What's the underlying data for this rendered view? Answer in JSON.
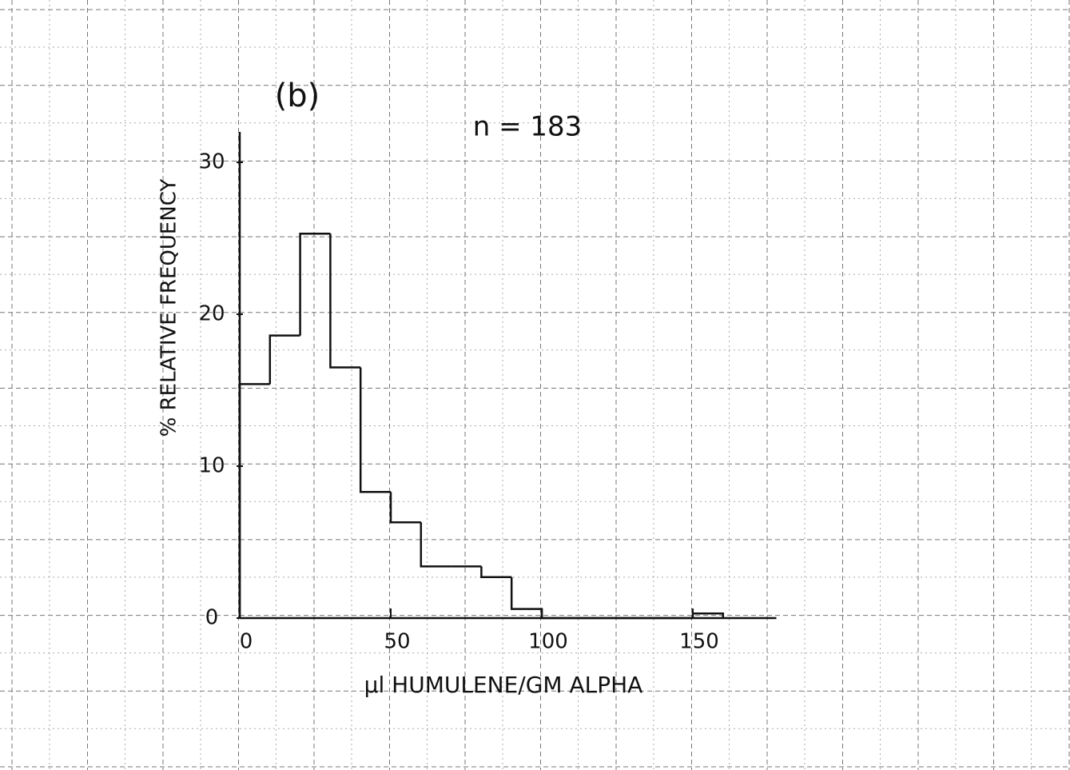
{
  "chart_data": {
    "type": "histogram",
    "title": "(b)",
    "annotation": "n = 183",
    "x_label": "µl HUMULENE/GM ALPHA",
    "y_label": "% RELATIVE FREQUENCY",
    "bins": [
      0,
      10,
      20,
      30,
      40,
      50,
      60,
      70,
      80,
      90,
      100,
      110,
      120,
      130,
      140,
      150,
      160
    ],
    "values": [
      15.4,
      18.6,
      25.3,
      16.5,
      8.3,
      6.3,
      3.4,
      3.4,
      2.7,
      0.6,
      0,
      0,
      0,
      0,
      0,
      0.3
    ],
    "color": "#111111",
    "xlim": [
      0,
      175
    ],
    "ylim": [
      0,
      32
    ],
    "xticks": [
      0,
      50,
      100,
      150
    ],
    "yticks": [
      0,
      10,
      20,
      30
    ]
  }
}
